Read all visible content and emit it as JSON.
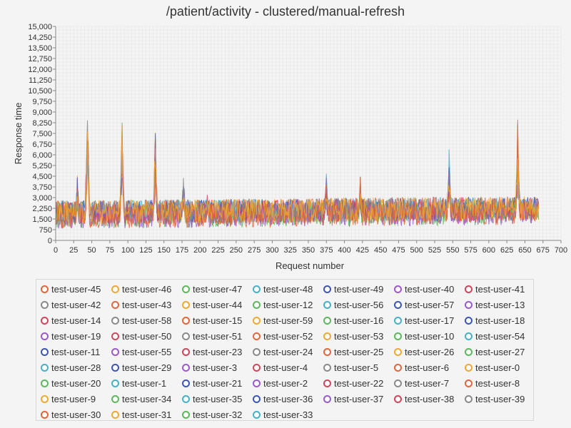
{
  "chart_data": {
    "type": "line",
    "title": "/patient/activity - clustered/manual-refresh",
    "xlabel": "Request number",
    "ylabel": "Response time",
    "xlim": [
      0,
      700
    ],
    "ylim": [
      0,
      15000
    ],
    "x_ticks": [
      "0",
      "25",
      "50",
      "75",
      "100",
      "125",
      "150",
      "175",
      "200",
      "225",
      "250",
      "275",
      "300",
      "325",
      "350",
      "375",
      "400",
      "425",
      "450",
      "475",
      "500",
      "525",
      "550",
      "575",
      "600",
      "625",
      "650",
      "675",
      "700"
    ],
    "y_ticks": [
      "0",
      "750",
      "1,500",
      "2,250",
      "3,000",
      "3,750",
      "4,500",
      "5,250",
      "6,000",
      "6,750",
      "7,500",
      "8,250",
      "9,000",
      "9,750",
      "10,500",
      "11,250",
      "12,000",
      "12,750",
      "13,500",
      "14,250",
      "15,000"
    ],
    "grid": true,
    "legend_position": "bottom",
    "n_requests": 670,
    "baseline_range": [
      750,
      3000
    ],
    "spikes": [
      {
        "x": 30,
        "y": 4800
      },
      {
        "x": 44,
        "y": 9600
      },
      {
        "x": 92,
        "y": 8500
      },
      {
        "x": 138,
        "y": 7800
      },
      {
        "x": 177,
        "y": 5100
      },
      {
        "x": 210,
        "y": 3600
      },
      {
        "x": 375,
        "y": 5000
      },
      {
        "x": 422,
        "y": 4700
      },
      {
        "x": 545,
        "y": 6800
      },
      {
        "x": 640,
        "y": 8600
      }
    ],
    "series": [
      {
        "name": "test-user-45",
        "color": "#e4653b"
      },
      {
        "name": "test-user-46",
        "color": "#f0a830"
      },
      {
        "name": "test-user-47",
        "color": "#5cb85c"
      },
      {
        "name": "test-user-48",
        "color": "#46b0c8"
      },
      {
        "name": "test-user-49",
        "color": "#3d55b8"
      },
      {
        "name": "test-user-40",
        "color": "#9b59d0"
      },
      {
        "name": "test-user-41",
        "color": "#d0455a"
      },
      {
        "name": "test-user-42",
        "color": "#8a8a8a"
      },
      {
        "name": "test-user-43",
        "color": "#e4653b"
      },
      {
        "name": "test-user-44",
        "color": "#f0a830"
      },
      {
        "name": "test-user-12",
        "color": "#5cb85c"
      },
      {
        "name": "test-user-56",
        "color": "#46b0c8"
      },
      {
        "name": "test-user-57",
        "color": "#3d55b8"
      },
      {
        "name": "test-user-13",
        "color": "#9b59d0"
      },
      {
        "name": "test-user-14",
        "color": "#d0455a"
      },
      {
        "name": "test-user-58",
        "color": "#8a8a8a"
      },
      {
        "name": "test-user-15",
        "color": "#e4653b"
      },
      {
        "name": "test-user-59",
        "color": "#f0a830"
      },
      {
        "name": "test-user-16",
        "color": "#5cb85c"
      },
      {
        "name": "test-user-17",
        "color": "#46b0c8"
      },
      {
        "name": "test-user-18",
        "color": "#3d55b8"
      },
      {
        "name": "test-user-19",
        "color": "#9b59d0"
      },
      {
        "name": "test-user-50",
        "color": "#d0455a"
      },
      {
        "name": "test-user-51",
        "color": "#8a8a8a"
      },
      {
        "name": "test-user-52",
        "color": "#e4653b"
      },
      {
        "name": "test-user-53",
        "color": "#f0a830"
      },
      {
        "name": "test-user-10",
        "color": "#5cb85c"
      },
      {
        "name": "test-user-54",
        "color": "#46b0c8"
      },
      {
        "name": "test-user-11",
        "color": "#3d55b8"
      },
      {
        "name": "test-user-55",
        "color": "#9b59d0"
      },
      {
        "name": "test-user-23",
        "color": "#d0455a"
      },
      {
        "name": "test-user-24",
        "color": "#8a8a8a"
      },
      {
        "name": "test-user-25",
        "color": "#e4653b"
      },
      {
        "name": "test-user-26",
        "color": "#f0a830"
      },
      {
        "name": "test-user-27",
        "color": "#5cb85c"
      },
      {
        "name": "test-user-28",
        "color": "#46b0c8"
      },
      {
        "name": "test-user-29",
        "color": "#3d55b8"
      },
      {
        "name": "test-user-3",
        "color": "#9b59d0"
      },
      {
        "name": "test-user-4",
        "color": "#d0455a"
      },
      {
        "name": "test-user-5",
        "color": "#8a8a8a"
      },
      {
        "name": "test-user-6",
        "color": "#e4653b"
      },
      {
        "name": "test-user-0",
        "color": "#f0a830"
      },
      {
        "name": "test-user-20",
        "color": "#5cb85c"
      },
      {
        "name": "test-user-1",
        "color": "#46b0c8"
      },
      {
        "name": "test-user-21",
        "color": "#3d55b8"
      },
      {
        "name": "test-user-2",
        "color": "#9b59d0"
      },
      {
        "name": "test-user-22",
        "color": "#d0455a"
      },
      {
        "name": "test-user-7",
        "color": "#8a8a8a"
      },
      {
        "name": "test-user-8",
        "color": "#e4653b"
      },
      {
        "name": "test-user-9",
        "color": "#f0a830"
      },
      {
        "name": "test-user-34",
        "color": "#5cb85c"
      },
      {
        "name": "test-user-35",
        "color": "#46b0c8"
      },
      {
        "name": "test-user-36",
        "color": "#3d55b8"
      },
      {
        "name": "test-user-37",
        "color": "#9b59d0"
      },
      {
        "name": "test-user-38",
        "color": "#d0455a"
      },
      {
        "name": "test-user-39",
        "color": "#8a8a8a"
      },
      {
        "name": "test-user-30",
        "color": "#e4653b"
      },
      {
        "name": "test-user-31",
        "color": "#f0a830"
      },
      {
        "name": "test-user-32",
        "color": "#5cb85c"
      },
      {
        "name": "test-user-33",
        "color": "#46b0c8"
      }
    ]
  }
}
